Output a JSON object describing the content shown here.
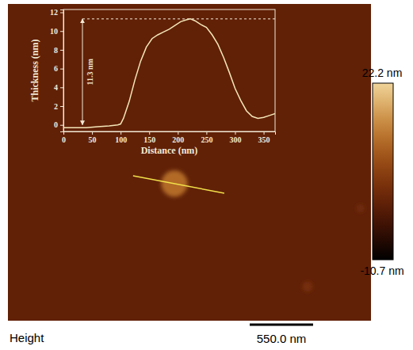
{
  "chart_data": [
    {
      "type": "line",
      "x_label": "Distance (nm)",
      "y_label": "Thickness (nm)",
      "x": [
        0,
        20,
        40,
        60,
        80,
        95,
        100,
        105,
        115,
        125,
        135,
        145,
        155,
        165,
        175,
        185,
        195,
        205,
        215,
        222,
        230,
        240,
        250,
        260,
        270,
        280,
        290,
        300,
        310,
        320,
        330,
        340,
        350,
        360,
        370
      ],
      "values": [
        -0.3,
        -0.3,
        -0.3,
        -0.2,
        -0.1,
        0,
        0.1,
        0.7,
        2.5,
        4.8,
        6.8,
        8.3,
        9.2,
        9.6,
        9.9,
        10.2,
        10.6,
        11.0,
        11.2,
        11.3,
        11.1,
        10.7,
        10.4,
        9.6,
        8.6,
        7.2,
        5.6,
        3.9,
        2.6,
        1.5,
        0.9,
        0.7,
        0.8,
        1.0,
        1.2
      ],
      "xlim": [
        0,
        370
      ],
      "ylim": [
        -0.7,
        12.3
      ],
      "xticks": [
        0,
        50,
        100,
        150,
        200,
        250,
        300,
        350
      ],
      "yticks": [
        0,
        2,
        4,
        6,
        8,
        10,
        12
      ],
      "annotations": [
        {
          "value": 11.3,
          "label": "11.3 nm"
        }
      ]
    },
    {
      "type": "image",
      "title": "Height",
      "xlim": [
        0,
        3150
      ],
      "ylim": [
        0,
        2750
      ],
      "baseline": 0,
      "x": [
        1444,
        2599,
        3059
      ],
      "y": [
        1560,
        2454,
        1774
      ],
      "values": [
        11.3,
        3,
        2
      ],
      "profile_line": {
        "x": [
          1086,
          1877
        ],
        "y": [
          1492,
          1643
        ]
      },
      "colorbar_range": [
        -10.7,
        22.2
      ],
      "colorbar_ticks": [
        {
          "value": 22.2,
          "label": "22.2 nm"
        },
        {
          "value": -10.7,
          "label": "-10.7 nm"
        }
      ],
      "scale_bar": {
        "value": 550.0,
        "label": "550.0 nm"
      }
    }
  ]
}
